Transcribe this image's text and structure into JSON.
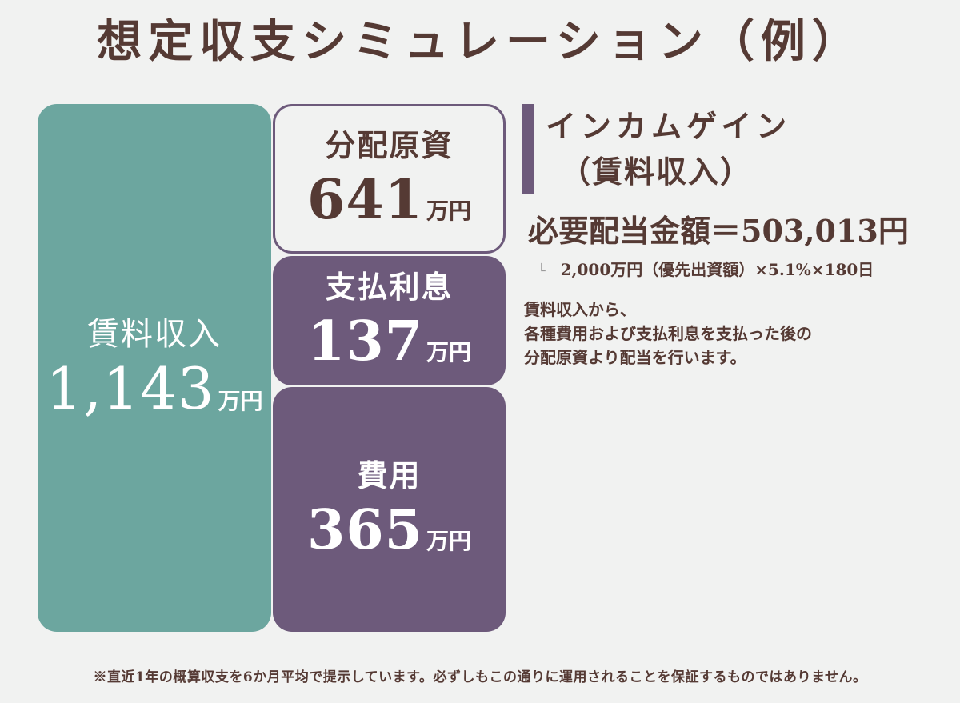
{
  "title": "想定収支シミュレーション（例）",
  "boxes": {
    "income": {
      "label": "賃料収入",
      "value": "1,143",
      "unit": "万円"
    },
    "distribution": {
      "label": "分配原資",
      "value": "641",
      "unit": "万円"
    },
    "interest": {
      "label": "支払利息",
      "value": "137",
      "unit": "万円"
    },
    "expense": {
      "label": "費用",
      "value": "365",
      "unit": "万円"
    }
  },
  "income_gain": {
    "title": "インカムゲイン",
    "subtitle": "（賃料収入）",
    "required_dividend": "必要配当金額＝503,013円",
    "formula_branch": "└",
    "formula": "2,000万円（優先出資額）×5.1%×180日",
    "description": [
      "賃料収入から、",
      "各種費用および支払利息を支払った後の",
      "分配原資より配当を行います。"
    ]
  },
  "footnote": "※直近1年の概算収支を6か月平均で提示しています。必ずしもこの通りに運用されることを保証するものではありません。",
  "colors": {
    "background": "#f1f2f1",
    "teal": "#6ca69f",
    "purple": "#6d5a7b",
    "text_brown": "#553a34"
  }
}
